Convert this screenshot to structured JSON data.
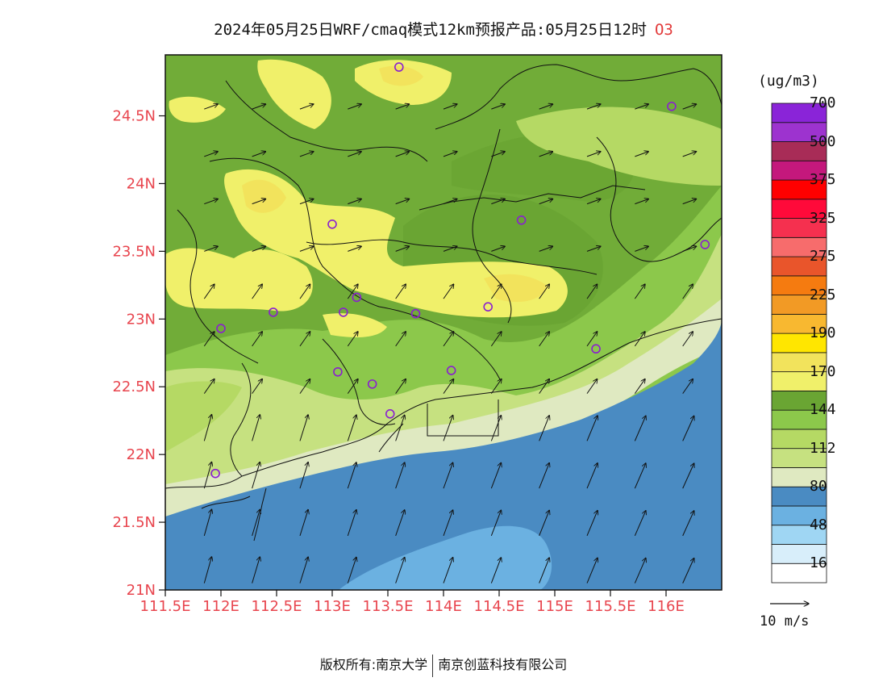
{
  "title": {
    "text": "2024年05月25日WRF/cmaq模式12km预报产品:05月25日12时",
    "variable": "O3"
  },
  "map": {
    "lon_range": [
      111.5,
      116.5
    ],
    "lat_range": [
      21.0,
      24.95
    ],
    "x_ticks": [
      "111.5E",
      "112E",
      "112.5E",
      "113E",
      "113.5E",
      "114E",
      "114.5E",
      "115E",
      "115.5E",
      "116E"
    ],
    "y_ticks": [
      "24.5N",
      "24N",
      "23.5N",
      "23N",
      "22.5N",
      "22N",
      "21.5N",
      "21N"
    ],
    "stations": [
      {
        "lon": 113.6,
        "lat": 24.86
      },
      {
        "lon": 116.05,
        "lat": 24.57
      },
      {
        "lon": 113.0,
        "lat": 23.7
      },
      {
        "lon": 114.7,
        "lat": 23.73
      },
      {
        "lon": 116.35,
        "lat": 23.55
      },
      {
        "lon": 113.22,
        "lat": 23.16
      },
      {
        "lon": 112.47,
        "lat": 23.05
      },
      {
        "lon": 113.1,
        "lat": 23.05
      },
      {
        "lon": 113.75,
        "lat": 23.04
      },
      {
        "lon": 114.4,
        "lat": 23.09
      },
      {
        "lon": 112.0,
        "lat": 22.93
      },
      {
        "lon": 115.37,
        "lat": 22.78
      },
      {
        "lon": 113.05,
        "lat": 22.61
      },
      {
        "lon": 114.07,
        "lat": 22.62
      },
      {
        "lon": 113.36,
        "lat": 22.52
      },
      {
        "lon": 113.52,
        "lat": 22.3
      },
      {
        "lon": 111.95,
        "lat": 21.86
      }
    ]
  },
  "colorbar": {
    "unit": "(ug/m3)",
    "colors": [
      "#ffffff",
      "#d8eefa",
      "#9fd6f3",
      "#6bb1e1",
      "#4a8bc2",
      "#dfe9c1",
      "#c6e180",
      "#b5d964",
      "#8cc84b",
      "#6aa533",
      "#f0f06a",
      "#f2e35c",
      "#ffe600",
      "#f8b830",
      "#f29a25",
      "#f57b10",
      "#e9552b",
      "#f76c6c",
      "#f5304f",
      "#ff0a3a",
      "#ff0000",
      "#c4187c",
      "#a82c57",
      "#9d33cf",
      "#8a24d8"
    ],
    "labels": [
      "16",
      "48",
      "80",
      "112",
      "144",
      "170",
      "190",
      "225",
      "275",
      "325",
      "375",
      "500",
      "700"
    ]
  },
  "legend": {
    "wind_label": "10 m/s"
  },
  "footer": {
    "left": "版权所有:南京大学",
    "right": "南京创蓝科技有限公司"
  }
}
